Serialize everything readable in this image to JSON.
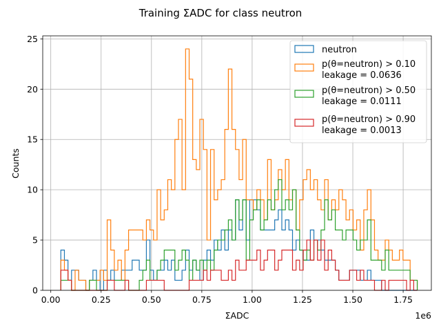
{
  "chart_data": {
    "type": "histogram-step",
    "title": "Training ΣADC for class neutron",
    "xlabel": "ΣADC",
    "ylabel": "Counts",
    "x_offset_text": "1e6",
    "xlim": [
      -40000,
      1890000
    ],
    "ylim": [
      0,
      25.3
    ],
    "xticks": [
      0,
      250000,
      500000,
      750000,
      1000000,
      1250000,
      1500000,
      1750000
    ],
    "xtick_labels": [
      "0.00",
      "0.25",
      "0.50",
      "0.75",
      "1.00",
      "1.25",
      "1.50",
      "1.75"
    ],
    "yticks": [
      0,
      5,
      10,
      15,
      20,
      25
    ],
    "ytick_labels": [
      "0",
      "5",
      "10",
      "15",
      "20",
      "25"
    ],
    "grid": true,
    "legend_loc": "upper right",
    "bins": {
      "start": 50000,
      "width": 17700,
      "count": 100
    },
    "series": [
      {
        "name": "neutron",
        "color": "#1f77b4",
        "counts": [
          4,
          3,
          1,
          2,
          2,
          1,
          1,
          0,
          1,
          2,
          1,
          0,
          2,
          1,
          2,
          1,
          1,
          2,
          2,
          2,
          3,
          3,
          2,
          2,
          5,
          2,
          1,
          2,
          2,
          3,
          2,
          3,
          1,
          1,
          2,
          4,
          2,
          3,
          2,
          1,
          3,
          4,
          3,
          5,
          4,
          6,
          4,
          6,
          5,
          9,
          6,
          9,
          5,
          9,
          9,
          8,
          6,
          6,
          6,
          6,
          7,
          8,
          6,
          7,
          6,
          4,
          5,
          4,
          3,
          3,
          6,
          5,
          5,
          4,
          3,
          3,
          3,
          2,
          1,
          1,
          1,
          2,
          2,
          2,
          1,
          1,
          2,
          1,
          1,
          1,
          0,
          0,
          0,
          0,
          0,
          0,
          0,
          0,
          0,
          0
        ]
      },
      {
        "name": "p(θ=neutron) > 0.10",
        "color": "#ff7f0e",
        "counts": [
          3,
          2,
          1,
          0,
          2,
          1,
          1,
          0,
          1,
          1,
          1,
          2,
          1,
          7,
          4,
          2,
          3,
          1,
          4,
          6,
          6,
          6,
          6,
          5,
          7,
          6,
          5,
          10,
          7,
          8,
          11,
          10,
          15,
          17,
          10,
          24,
          21,
          13,
          12,
          17,
          14,
          5,
          14,
          9,
          10,
          11,
          16,
          22,
          16,
          14,
          11,
          15,
          9,
          9,
          8,
          10,
          9,
          7,
          13,
          8,
          9,
          12,
          10,
          13,
          9,
          10,
          6,
          9,
          11,
          12,
          10,
          11,
          9,
          8,
          11,
          7,
          9,
          8,
          10,
          9,
          7,
          8,
          6,
          7,
          4,
          8,
          10,
          7,
          4,
          3,
          3,
          5,
          4,
          3,
          3,
          4,
          3,
          3,
          1,
          1
        ]
      },
      {
        "name": "p(θ=neutron) > 0.50",
        "color": "#2ca02c",
        "counts": [
          1,
          1,
          1,
          0,
          0,
          0,
          0,
          0,
          1,
          1,
          0,
          0,
          0,
          1,
          1,
          1,
          1,
          1,
          1,
          0,
          0,
          0,
          1,
          2,
          3,
          1,
          1,
          2,
          3,
          4,
          4,
          4,
          2,
          3,
          4,
          3,
          1,
          3,
          2,
          3,
          2,
          3,
          2,
          4,
          5,
          5,
          6,
          7,
          5,
          9,
          7,
          9,
          3,
          7,
          8,
          9,
          6,
          7,
          9,
          8,
          10,
          11,
          8,
          9,
          8,
          10,
          6,
          4,
          3,
          4,
          3,
          5,
          4,
          6,
          9,
          7,
          8,
          6,
          6,
          5,
          6,
          6,
          5,
          4,
          5,
          5,
          7,
          3,
          3,
          3,
          2,
          4,
          2,
          2,
          2,
          2,
          2,
          2,
          1,
          1
        ]
      },
      {
        "name": "p(θ=neutron) > 0.90",
        "color": "#d62728",
        "counts": [
          2,
          2,
          1,
          0,
          0,
          0,
          0,
          0,
          0,
          0,
          0,
          0,
          0,
          1,
          1,
          0,
          0,
          0,
          1,
          0,
          0,
          0,
          0,
          0,
          1,
          1,
          1,
          1,
          1,
          0,
          0,
          0,
          0,
          0,
          0,
          0,
          1,
          1,
          1,
          1,
          2,
          1,
          2,
          2,
          2,
          1,
          1,
          2,
          1,
          3,
          2,
          2,
          3,
          3,
          3,
          4,
          2,
          3,
          4,
          4,
          2,
          3,
          4,
          4,
          4,
          2,
          3,
          2,
          4,
          5,
          3,
          5,
          3,
          5,
          2,
          4,
          3,
          2,
          1,
          1,
          1,
          2,
          2,
          1,
          2,
          1,
          1,
          1,
          0,
          0,
          1,
          0,
          1,
          1,
          1,
          1,
          1,
          0,
          1,
          0
        ]
      }
    ],
    "legend": [
      {
        "line1": "neutron",
        "line2": ""
      },
      {
        "line1": "p(θ=neutron) > 0.10",
        "line2": "leakage = 0.0636"
      },
      {
        "line1": "p(θ=neutron) > 0.50",
        "line2": "leakage = 0.0111"
      },
      {
        "line1": "p(θ=neutron) > 0.90",
        "line2": "leakage = 0.0013"
      }
    ]
  }
}
